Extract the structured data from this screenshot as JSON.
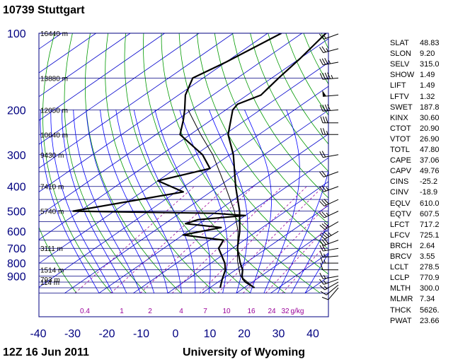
{
  "header": {
    "station": "10739  Stuttgart"
  },
  "footer": {
    "time": "12Z 16 Jun 2011",
    "source": "University of Wyoming"
  },
  "chart_data": {
    "type": "line",
    "subtype": "skew-T log-P sounding",
    "x_ticks": [
      "-40",
      "-30",
      "-20",
      "-10",
      "0",
      "10",
      "20",
      "30",
      "40"
    ],
    "x_range": [
      -40,
      40
    ],
    "pressure_ticks": [
      {
        "p": 100,
        "label": "100"
      },
      {
        "p": 200,
        "label": "200"
      },
      {
        "p": 300,
        "label": "300"
      },
      {
        "p": 400,
        "label": "400"
      },
      {
        "p": 500,
        "label": "500"
      },
      {
        "p": 600,
        "label": "600"
      },
      {
        "p": 700,
        "label": "700"
      },
      {
        "p": 800,
        "label": "800"
      },
      {
        "p": 900,
        "label": "900"
      }
    ],
    "pressure_range": [
      100,
      1050
    ],
    "height_labels": [
      {
        "p": 100,
        "label": "16440 m"
      },
      {
        "p": 150,
        "label": "13880 m"
      },
      {
        "p": 200,
        "label": "12050 m"
      },
      {
        "p": 250,
        "label": "10640 m"
      },
      {
        "p": 300,
        "label": "9430 m"
      },
      {
        "p": 400,
        "label": "7410 m"
      },
      {
        "p": 500,
        "label": "5740 m"
      },
      {
        "p": 700,
        "label": "3111 m"
      },
      {
        "p": 850,
        "label": "1514 m"
      },
      {
        "p": 925,
        "label": "793 m"
      },
      {
        "p": 1000,
        "label": "114 m"
      }
    ],
    "mixing_ratio_labels": [
      "0.4",
      "1",
      "2",
      "4",
      "7",
      "10",
      "16",
      "24",
      "32",
      "g/kg"
    ],
    "mixing_ratio_values": [
      0.4,
      1,
      2,
      4,
      7,
      10,
      16,
      24,
      32
    ],
    "series": [
      {
        "variable": "temperature",
        "points": [
          {
            "p": 1000,
            "t": 23
          },
          {
            "p": 975,
            "t": 20.5
          },
          {
            "p": 950,
            "t": 18
          },
          {
            "p": 925,
            "t": 16
          },
          {
            "p": 900,
            "t": 14.5
          },
          {
            "p": 850,
            "t": 12
          },
          {
            "p": 800,
            "t": 8.5
          },
          {
            "p": 700,
            "t": 1.5
          },
          {
            "p": 600,
            "t": -5
          },
          {
            "p": 500,
            "t": -13.5
          },
          {
            "p": 400,
            "t": -25
          },
          {
            "p": 300,
            "t": -39
          },
          {
            "p": 250,
            "t": -49
          },
          {
            "p": 200,
            "t": -58
          },
          {
            "p": 190,
            "t": -59
          },
          {
            "p": 175,
            "t": -56
          },
          {
            "p": 150,
            "t": -58
          },
          {
            "p": 125,
            "t": -60
          },
          {
            "p": 100,
            "t": -63
          }
        ]
      },
      {
        "variable": "dewpoint",
        "points": [
          {
            "p": 1000,
            "t": 13
          },
          {
            "p": 950,
            "t": 11
          },
          {
            "p": 925,
            "t": 10
          },
          {
            "p": 850,
            "t": 7
          },
          {
            "p": 800,
            "t": 4
          },
          {
            "p": 700,
            "t": -4
          },
          {
            "p": 650,
            "t": -6
          },
          {
            "p": 620,
            "t": -20
          },
          {
            "p": 580,
            "t": -12
          },
          {
            "p": 560,
            "t": -24
          },
          {
            "p": 540,
            "t": -22
          },
          {
            "p": 520,
            "t": -10
          },
          {
            "p": 510,
            "t": -20
          },
          {
            "p": 500,
            "t": -62
          },
          {
            "p": 420,
            "t": -38
          },
          {
            "p": 380,
            "t": -50
          },
          {
            "p": 340,
            "t": -40
          },
          {
            "p": 300,
            "t": -48
          },
          {
            "p": 250,
            "t": -63
          },
          {
            "p": 220,
            "t": -68
          },
          {
            "p": 200,
            "t": -72
          },
          {
            "p": 175,
            "t": -78
          },
          {
            "p": 150,
            "t": -83
          },
          {
            "p": 130,
            "t": -80
          },
          {
            "p": 100,
            "t": -76
          }
        ]
      },
      {
        "variable": "parcel",
        "points": [
          {
            "p": 1000,
            "t": 23
          },
          {
            "p": 900,
            "t": 14
          },
          {
            "p": 780,
            "t": 6.5
          },
          {
            "p": 700,
            "t": 1.5
          },
          {
            "p": 600,
            "t": -5.5
          },
          {
            "p": 500,
            "t": -15
          },
          {
            "p": 400,
            "t": -28
          },
          {
            "p": 300,
            "t": -45
          },
          {
            "p": 250,
            "t": -57
          },
          {
            "p": 200,
            "t": -71
          }
        ]
      }
    ],
    "wind_barbs": [
      {
        "p": 100,
        "dir": 250,
        "kt": 15
      },
      {
        "p": 115,
        "dir": 255,
        "kt": 25
      },
      {
        "p": 130,
        "dir": 260,
        "kt": 35
      },
      {
        "p": 150,
        "dir": 265,
        "kt": 45
      },
      {
        "p": 175,
        "dir": 265,
        "kt": 50
      },
      {
        "p": 200,
        "dir": 265,
        "kt": 40
      },
      {
        "p": 225,
        "dir": 270,
        "kt": 30
      },
      {
        "p": 250,
        "dir": 270,
        "kt": 25
      },
      {
        "p": 300,
        "dir": 260,
        "kt": 20
      },
      {
        "p": 350,
        "dir": 250,
        "kt": 20
      },
      {
        "p": 400,
        "dir": 250,
        "kt": 25
      },
      {
        "p": 450,
        "dir": 245,
        "kt": 30
      },
      {
        "p": 500,
        "dir": 245,
        "kt": 25
      },
      {
        "p": 550,
        "dir": 240,
        "kt": 30
      },
      {
        "p": 600,
        "dir": 240,
        "kt": 35
      },
      {
        "p": 650,
        "dir": 250,
        "kt": 30
      },
      {
        "p": 700,
        "dir": 260,
        "kt": 20
      },
      {
        "p": 750,
        "dir": 265,
        "kt": 15
      },
      {
        "p": 800,
        "dir": 270,
        "kt": 15
      },
      {
        "p": 850,
        "dir": 270,
        "kt": 10
      },
      {
        "p": 900,
        "dir": 260,
        "kt": 15
      },
      {
        "p": 925,
        "dir": 250,
        "kt": 15
      },
      {
        "p": 950,
        "dir": 240,
        "kt": 15
      },
      {
        "p": 975,
        "dir": 230,
        "kt": 10
      },
      {
        "p": 1000,
        "dir": 220,
        "kt": 10
      }
    ],
    "colors": {
      "isobar": "#000080",
      "isotherm": "#0000cc",
      "dry_adiabat": "#009900",
      "moist_adiabat": "#0000ff",
      "mixing_ratio": "#990099",
      "axis_text_left": "#000080",
      "axis_text_bottom": "#000080",
      "sounding": "#000000"
    }
  },
  "indices": [
    {
      "key": "SLAT",
      "value": "48.83"
    },
    {
      "key": "SLON",
      "value": "9.20"
    },
    {
      "key": "SELV",
      "value": "315.0"
    },
    {
      "key": "SHOW",
      "value": "1.49"
    },
    {
      "key": "LIFT",
      "value": "1.49"
    },
    {
      "key": "LFTV",
      "value": "1.32"
    },
    {
      "key": "SWET",
      "value": "187.8"
    },
    {
      "key": "KINX",
      "value": "30.60"
    },
    {
      "key": "CTOT",
      "value": "20.90"
    },
    {
      "key": "VTOT",
      "value": "26.90"
    },
    {
      "key": "TOTL",
      "value": "47.80"
    },
    {
      "key": "CAPE",
      "value": "37.06"
    },
    {
      "key": "CAPV",
      "value": "49.76"
    },
    {
      "key": "CINS",
      "value": "-25.2"
    },
    {
      "key": "CINV",
      "value": "-18.9"
    },
    {
      "key": "EQLV",
      "value": "610.0"
    },
    {
      "key": "EQTV",
      "value": "607.5"
    },
    {
      "key": "LFCT",
      "value": "717.2"
    },
    {
      "key": "LFCV",
      "value": "725.1"
    },
    {
      "key": "BRCH",
      "value": "2.64"
    },
    {
      "key": "BRCV",
      "value": "3.55"
    },
    {
      "key": "LCLT",
      "value": "278.5"
    },
    {
      "key": "LCLP",
      "value": "770.9"
    },
    {
      "key": "MLTH",
      "value": "300.0"
    },
    {
      "key": "MLMR",
      "value": "7.34"
    },
    {
      "key": "THCK",
      "value": "5626."
    },
    {
      "key": "PWAT",
      "value": "23.66"
    }
  ]
}
